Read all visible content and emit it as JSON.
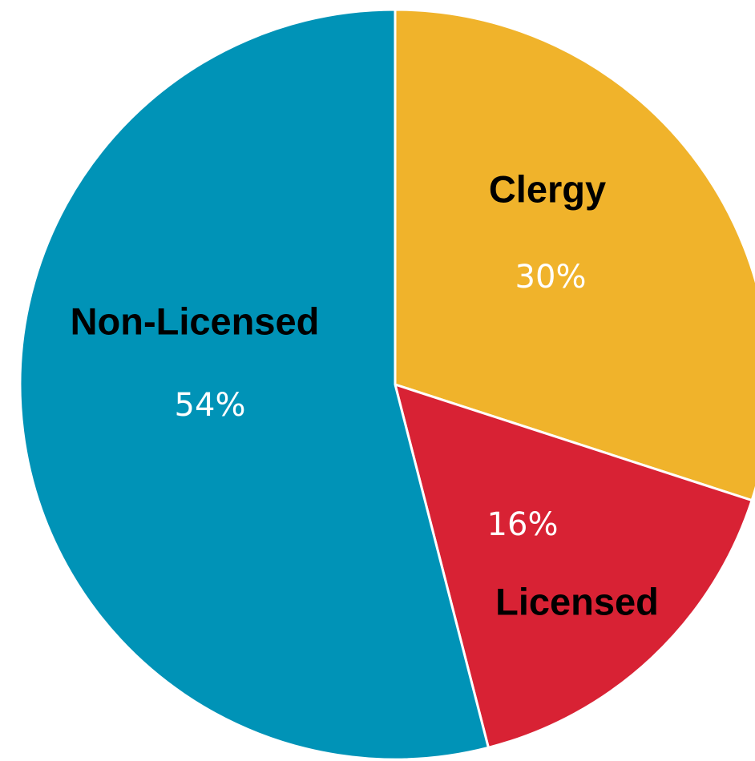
{
  "chart_data": {
    "type": "pie",
    "categories": [
      "Clergy",
      "Licensed",
      "Non-Licensed"
    ],
    "values": [
      30,
      16,
      54
    ],
    "value_labels": [
      "30%",
      "16%",
      "54%"
    ],
    "colors": [
      "#f0b32b",
      "#d82234",
      "#0093b7"
    ]
  }
}
